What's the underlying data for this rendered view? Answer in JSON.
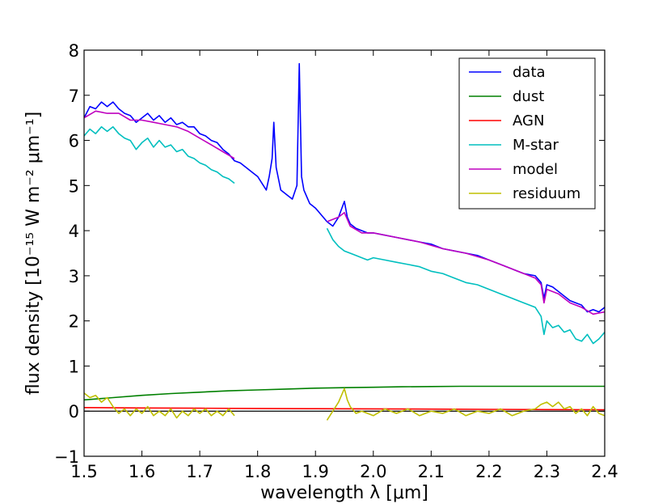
{
  "chart_data": {
    "type": "line",
    "title": "",
    "xlabel": "wavelength λ [μm]",
    "ylabel": "flux density [10⁻¹⁵ W m⁻² μm⁻¹]",
    "xlim": [
      1.5,
      2.4
    ],
    "ylim": [
      -1,
      8
    ],
    "xticks": [
      "1.5",
      "1.6",
      "1.7",
      "1.8",
      "1.9",
      "2.0",
      "2.1",
      "2.2",
      "2.3",
      "2.4"
    ],
    "yticks": [
      "−1",
      "0",
      "1",
      "2",
      "3",
      "4",
      "5",
      "6",
      "7",
      "8"
    ],
    "grid": false,
    "legend_position": "top-right",
    "zero_line": true,
    "series": [
      {
        "name": "data",
        "color": "#0000ff",
        "segments": [
          [
            [
              1.5,
              6.5
            ],
            [
              1.51,
              6.75
            ],
            [
              1.52,
              6.7
            ],
            [
              1.53,
              6.85
            ],
            [
              1.54,
              6.75
            ],
            [
              1.55,
              6.85
            ],
            [
              1.56,
              6.7
            ],
            [
              1.57,
              6.6
            ],
            [
              1.58,
              6.55
            ],
            [
              1.59,
              6.4
            ],
            [
              1.6,
              6.5
            ],
            [
              1.61,
              6.6
            ],
            [
              1.62,
              6.45
            ],
            [
              1.63,
              6.55
            ],
            [
              1.64,
              6.4
            ],
            [
              1.65,
              6.5
            ],
            [
              1.66,
              6.35
            ],
            [
              1.67,
              6.4
            ],
            [
              1.68,
              6.3
            ],
            [
              1.69,
              6.3
            ],
            [
              1.7,
              6.15
            ],
            [
              1.71,
              6.1
            ],
            [
              1.72,
              6.0
            ],
            [
              1.73,
              5.95
            ],
            [
              1.74,
              5.8
            ],
            [
              1.75,
              5.7
            ],
            [
              1.76,
              5.55
            ],
            [
              1.77,
              5.5
            ],
            [
              1.78,
              5.4
            ],
            [
              1.79,
              5.3
            ],
            [
              1.8,
              5.2
            ],
            [
              1.81,
              5.0
            ],
            [
              1.815,
              4.9
            ],
            [
              1.82,
              5.2
            ],
            [
              1.825,
              5.6
            ],
            [
              1.828,
              6.4
            ],
            [
              1.832,
              5.4
            ],
            [
              1.84,
              4.9
            ],
            [
              1.85,
              4.8
            ],
            [
              1.86,
              4.7
            ],
            [
              1.868,
              5.0
            ],
            [
              1.872,
              7.7
            ],
            [
              1.876,
              5.2
            ],
            [
              1.88,
              4.9
            ],
            [
              1.89,
              4.6
            ],
            [
              1.9,
              4.5
            ],
            [
              1.91,
              4.35
            ],
            [
              1.92,
              4.2
            ],
            [
              1.93,
              4.1
            ],
            [
              1.94,
              4.3
            ],
            [
              1.95,
              4.65
            ],
            [
              1.955,
              4.3
            ],
            [
              1.96,
              4.15
            ],
            [
              1.97,
              4.05
            ],
            [
              1.98,
              4.0
            ],
            [
              1.99,
              3.95
            ],
            [
              2.0,
              3.95
            ],
            [
              2.02,
              3.9
            ],
            [
              2.04,
              3.85
            ],
            [
              2.06,
              3.8
            ],
            [
              2.08,
              3.75
            ],
            [
              2.1,
              3.7
            ],
            [
              2.12,
              3.6
            ],
            [
              2.14,
              3.55
            ],
            [
              2.16,
              3.5
            ],
            [
              2.18,
              3.45
            ],
            [
              2.2,
              3.35
            ],
            [
              2.22,
              3.25
            ],
            [
              2.24,
              3.15
            ],
            [
              2.26,
              3.05
            ],
            [
              2.28,
              3.0
            ],
            [
              2.29,
              2.85
            ],
            [
              2.295,
              2.5
            ],
            [
              2.3,
              2.8
            ],
            [
              2.31,
              2.75
            ],
            [
              2.32,
              2.65
            ],
            [
              2.33,
              2.55
            ],
            [
              2.34,
              2.45
            ],
            [
              2.35,
              2.4
            ],
            [
              2.36,
              2.35
            ],
            [
              2.37,
              2.2
            ],
            [
              2.38,
              2.25
            ],
            [
              2.39,
              2.2
            ],
            [
              2.4,
              2.3
            ]
          ]
        ]
      },
      {
        "name": "dust",
        "color": "#008000",
        "segments": [
          [
            [
              1.5,
              0.25
            ],
            [
              1.55,
              0.3
            ],
            [
              1.6,
              0.35
            ],
            [
              1.65,
              0.39
            ],
            [
              1.7,
              0.42
            ],
            [
              1.75,
              0.45
            ],
            [
              1.8,
              0.47
            ],
            [
              1.85,
              0.49
            ],
            [
              1.9,
              0.51
            ],
            [
              1.95,
              0.52
            ],
            [
              2.0,
              0.53
            ],
            [
              2.05,
              0.54
            ],
            [
              2.1,
              0.545
            ],
            [
              2.15,
              0.55
            ],
            [
              2.2,
              0.55
            ],
            [
              2.25,
              0.55
            ],
            [
              2.3,
              0.55
            ],
            [
              2.35,
              0.55
            ],
            [
              2.4,
              0.55
            ]
          ]
        ]
      },
      {
        "name": "AGN",
        "color": "#ff0000",
        "segments": [
          [
            [
              1.5,
              0.08
            ],
            [
              1.6,
              0.07
            ],
            [
              1.7,
              0.065
            ],
            [
              1.8,
              0.06
            ],
            [
              1.9,
              0.055
            ],
            [
              2.0,
              0.05
            ],
            [
              2.1,
              0.045
            ],
            [
              2.2,
              0.04
            ],
            [
              2.3,
              0.035
            ],
            [
              2.4,
              0.03
            ]
          ]
        ]
      },
      {
        "name": "M-star",
        "color": "#00bfbf",
        "segments": [
          [
            [
              1.5,
              6.1
            ],
            [
              1.51,
              6.25
            ],
            [
              1.52,
              6.15
            ],
            [
              1.53,
              6.3
            ],
            [
              1.54,
              6.2
            ],
            [
              1.55,
              6.3
            ],
            [
              1.56,
              6.15
            ],
            [
              1.57,
              6.05
            ],
            [
              1.58,
              6.0
            ],
            [
              1.59,
              5.8
            ],
            [
              1.6,
              5.95
            ],
            [
              1.61,
              6.05
            ],
            [
              1.62,
              5.85
            ],
            [
              1.63,
              6.0
            ],
            [
              1.64,
              5.85
            ],
            [
              1.65,
              5.9
            ],
            [
              1.66,
              5.75
            ],
            [
              1.67,
              5.8
            ],
            [
              1.68,
              5.65
            ],
            [
              1.69,
              5.6
            ],
            [
              1.7,
              5.5
            ],
            [
              1.71,
              5.45
            ],
            [
              1.72,
              5.35
            ],
            [
              1.73,
              5.3
            ],
            [
              1.74,
              5.2
            ],
            [
              1.75,
              5.15
            ],
            [
              1.76,
              5.05
            ]
          ],
          [
            [
              1.92,
              4.05
            ],
            [
              1.93,
              3.8
            ],
            [
              1.94,
              3.65
            ],
            [
              1.95,
              3.55
            ],
            [
              1.96,
              3.5
            ],
            [
              1.97,
              3.45
            ],
            [
              1.98,
              3.4
            ],
            [
              1.99,
              3.35
            ],
            [
              2.0,
              3.4
            ],
            [
              2.02,
              3.35
            ],
            [
              2.04,
              3.3
            ],
            [
              2.06,
              3.25
            ],
            [
              2.08,
              3.2
            ],
            [
              2.1,
              3.1
            ],
            [
              2.12,
              3.05
            ],
            [
              2.14,
              2.95
            ],
            [
              2.16,
              2.85
            ],
            [
              2.18,
              2.8
            ],
            [
              2.2,
              2.7
            ],
            [
              2.22,
              2.6
            ],
            [
              2.24,
              2.5
            ],
            [
              2.26,
              2.4
            ],
            [
              2.28,
              2.3
            ],
            [
              2.29,
              2.1
            ],
            [
              2.295,
              1.7
            ],
            [
              2.3,
              2.0
            ],
            [
              2.31,
              1.85
            ],
            [
              2.32,
              1.9
            ],
            [
              2.33,
              1.75
            ],
            [
              2.34,
              1.8
            ],
            [
              2.35,
              1.6
            ],
            [
              2.36,
              1.55
            ],
            [
              2.37,
              1.7
            ],
            [
              2.38,
              1.5
            ],
            [
              2.39,
              1.6
            ],
            [
              2.4,
              1.75
            ]
          ]
        ]
      },
      {
        "name": "model",
        "color": "#bf00bf",
        "segments": [
          [
            [
              1.5,
              6.5
            ],
            [
              1.52,
              6.65
            ],
            [
              1.54,
              6.6
            ],
            [
              1.56,
              6.6
            ],
            [
              1.58,
              6.45
            ],
            [
              1.6,
              6.45
            ],
            [
              1.62,
              6.4
            ],
            [
              1.64,
              6.35
            ],
            [
              1.66,
              6.3
            ],
            [
              1.68,
              6.2
            ],
            [
              1.7,
              6.05
            ],
            [
              1.72,
              5.9
            ],
            [
              1.74,
              5.75
            ],
            [
              1.76,
              5.6
            ]
          ],
          [
            [
              1.92,
              4.2
            ],
            [
              1.94,
              4.3
            ],
            [
              1.95,
              4.4
            ],
            [
              1.96,
              4.1
            ],
            [
              1.98,
              3.95
            ],
            [
              2.0,
              3.95
            ],
            [
              2.04,
              3.85
            ],
            [
              2.08,
              3.75
            ],
            [
              2.12,
              3.6
            ],
            [
              2.16,
              3.5
            ],
            [
              2.2,
              3.35
            ],
            [
              2.24,
              3.15
            ],
            [
              2.28,
              2.95
            ],
            [
              2.29,
              2.8
            ],
            [
              2.295,
              2.4
            ],
            [
              2.3,
              2.7
            ],
            [
              2.32,
              2.6
            ],
            [
              2.34,
              2.4
            ],
            [
              2.36,
              2.3
            ],
            [
              2.38,
              2.15
            ],
            [
              2.4,
              2.2
            ]
          ]
        ]
      },
      {
        "name": "residuum",
        "color": "#bfbf00",
        "segments": [
          [
            [
              1.5,
              0.4
            ],
            [
              1.51,
              0.3
            ],
            [
              1.52,
              0.35
            ],
            [
              1.53,
              0.2
            ],
            [
              1.54,
              0.3
            ],
            [
              1.55,
              0.1
            ],
            [
              1.56,
              -0.05
            ],
            [
              1.57,
              0.05
            ],
            [
              1.58,
              -0.1
            ],
            [
              1.59,
              0.05
            ],
            [
              1.6,
              -0.05
            ],
            [
              1.61,
              0.1
            ],
            [
              1.62,
              -0.1
            ],
            [
              1.63,
              0.0
            ],
            [
              1.64,
              -0.1
            ],
            [
              1.65,
              0.05
            ],
            [
              1.66,
              -0.15
            ],
            [
              1.67,
              0.0
            ],
            [
              1.68,
              -0.1
            ],
            [
              1.69,
              0.05
            ],
            [
              1.7,
              -0.05
            ],
            [
              1.71,
              0.05
            ],
            [
              1.72,
              -0.1
            ],
            [
              1.73,
              0.0
            ],
            [
              1.74,
              -0.1
            ],
            [
              1.75,
              0.05
            ],
            [
              1.76,
              -0.1
            ]
          ],
          [
            [
              1.92,
              -0.2
            ],
            [
              1.93,
              0.0
            ],
            [
              1.94,
              0.2
            ],
            [
              1.95,
              0.5
            ],
            [
              1.955,
              0.25
            ],
            [
              1.96,
              0.1
            ],
            [
              1.97,
              -0.05
            ],
            [
              1.98,
              0.0
            ],
            [
              2.0,
              -0.1
            ],
            [
              2.02,
              0.05
            ],
            [
              2.04,
              -0.05
            ],
            [
              2.06,
              0.05
            ],
            [
              2.08,
              -0.1
            ],
            [
              2.1,
              0.0
            ],
            [
              2.12,
              -0.05
            ],
            [
              2.14,
              0.05
            ],
            [
              2.16,
              -0.1
            ],
            [
              2.18,
              0.0
            ],
            [
              2.2,
              -0.05
            ],
            [
              2.22,
              0.05
            ],
            [
              2.24,
              -0.1
            ],
            [
              2.26,
              0.0
            ],
            [
              2.28,
              0.05
            ],
            [
              2.29,
              0.15
            ],
            [
              2.3,
              0.2
            ],
            [
              2.31,
              0.1
            ],
            [
              2.32,
              0.2
            ],
            [
              2.33,
              0.05
            ],
            [
              2.34,
              0.1
            ],
            [
              2.35,
              -0.05
            ],
            [
              2.36,
              0.05
            ],
            [
              2.37,
              -0.1
            ],
            [
              2.38,
              0.1
            ],
            [
              2.39,
              -0.05
            ],
            [
              2.4,
              -0.1
            ]
          ]
        ]
      }
    ]
  }
}
